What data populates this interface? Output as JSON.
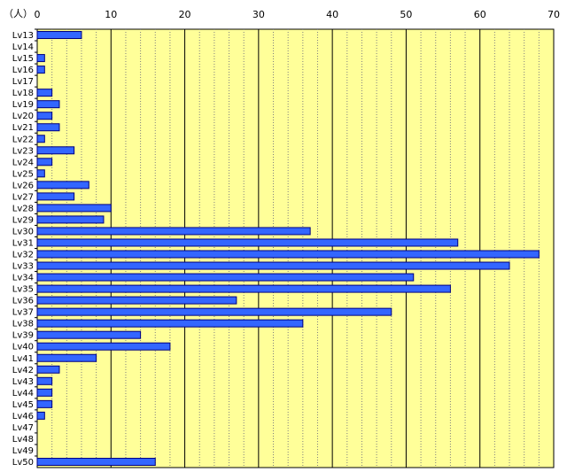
{
  "chart_data": {
    "type": "bar",
    "orientation": "horizontal",
    "unit_label": "（人）",
    "categories": [
      "Lv13",
      "Lv14",
      "Lv15",
      "Lv16",
      "Lv17",
      "Lv18",
      "Lv19",
      "Lv20",
      "Lv21",
      "Lv22",
      "Lv23",
      "Lv24",
      "Lv25",
      "Lv26",
      "Lv27",
      "Lv28",
      "Lv29",
      "Lv30",
      "Lv31",
      "Lv32",
      "Lv33",
      "Lv34",
      "Lv35",
      "Lv36",
      "Lv37",
      "Lv38",
      "Lv39",
      "Lv40",
      "Lv41",
      "Lv42",
      "Lv43",
      "Lv44",
      "Lv45",
      "Lv46",
      "Lv47",
      "Lv48",
      "Lv49",
      "Lv50"
    ],
    "values": [
      6,
      0,
      1,
      1,
      0,
      2,
      3,
      2,
      3,
      1,
      5,
      2,
      1,
      7,
      5,
      10,
      9,
      37,
      57,
      68,
      64,
      51,
      56,
      27,
      48,
      36,
      14,
      18,
      8,
      3,
      2,
      2,
      2,
      1,
      0,
      0,
      0,
      16
    ],
    "xlim": [
      0,
      70
    ],
    "xticks": [
      0,
      10,
      20,
      30,
      40,
      50,
      60,
      70
    ],
    "grid": true,
    "colors": {
      "plot_background": "#ffff99",
      "bar_fill": "#3366ff",
      "bar_stroke": "#000080",
      "major_grid": "#000000",
      "minor_grid": "#808080"
    }
  }
}
